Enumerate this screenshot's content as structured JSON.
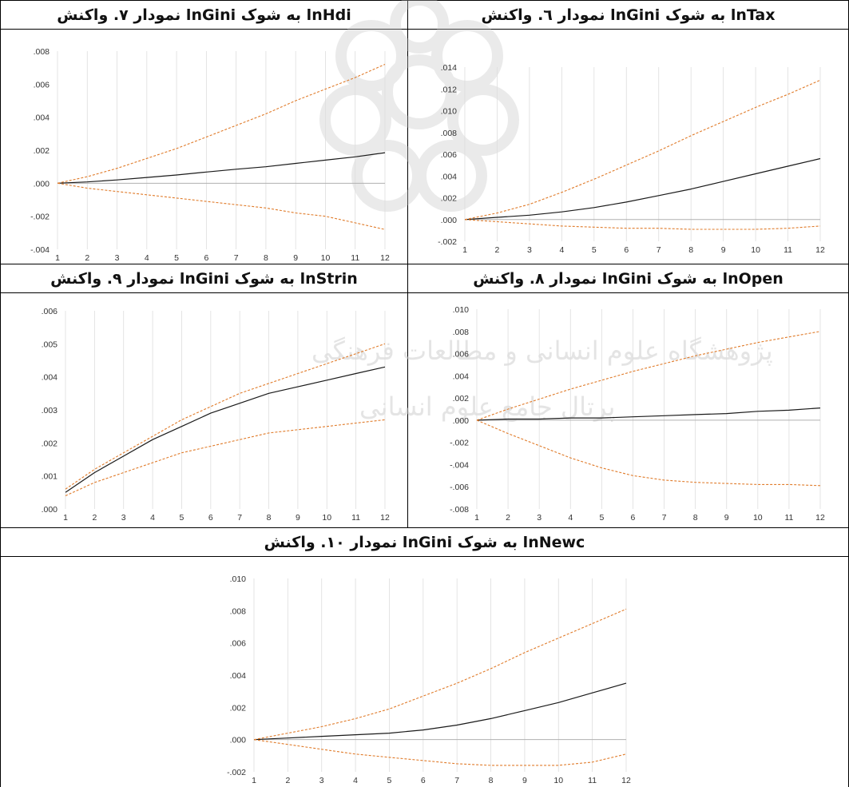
{
  "titles": {
    "t7": "نمودار ۷. واکنش lnGini به شوک lnHdi",
    "t6": "نمودار ٦. واکنش lnGini به شوک lnTax",
    "t9": "نمودار ۹. واکنش lnGini به شوک lnStrin",
    "t8": "نمودار ۸. واکنش lnGini به شوک lnOpen",
    "t10": "نمودار ۱۰. واکنش lnGini به شوک lnNewc"
  },
  "watermark": {
    "line1": "پژوهشگاه علوم انسانی و مطالعات فرهنگی",
    "line2": "پرتال جامع علوم انسانی"
  },
  "colors": {
    "response": "#1a1a1a",
    "band": "#e07b2a",
    "grid": "#dddddd",
    "zero": "#b0b0b0"
  },
  "chart_data": [
    {
      "id": "c7",
      "type": "line",
      "x": [
        1,
        2,
        3,
        4,
        5,
        6,
        7,
        8,
        9,
        10,
        11,
        12
      ],
      "ylim": [
        -0.004,
        0.008
      ],
      "yticks": [
        -0.004,
        -0.002,
        0.0,
        0.002,
        0.004,
        0.006,
        0.008
      ],
      "ytick_labels": [
        "-.004",
        "-.002",
        ".000",
        ".002",
        ".004",
        ".006",
        ".008"
      ],
      "series": [
        {
          "role": "response",
          "values": [
            0,
            8e-05,
            0.0002,
            0.00035,
            0.0005,
            0.00068,
            0.00085,
            0.001,
            0.0012,
            0.0014,
            0.0016,
            0.00185
          ]
        },
        {
          "role": "upper",
          "values": [
            0,
            0.0004,
            0.0009,
            0.0015,
            0.0021,
            0.0028,
            0.0035,
            0.0042,
            0.005,
            0.0057,
            0.0064,
            0.0072
          ]
        },
        {
          "role": "lower",
          "values": [
            0,
            -0.0003,
            -0.0005,
            -0.0007,
            -0.0009,
            -0.0011,
            -0.0013,
            -0.0015,
            -0.0018,
            -0.002,
            -0.0024,
            -0.0028
          ]
        }
      ]
    },
    {
      "id": "c6",
      "type": "line",
      "x": [
        1,
        2,
        3,
        4,
        5,
        6,
        7,
        8,
        9,
        10,
        11,
        12
      ],
      "ylim": [
        -0.002,
        0.014
      ],
      "yticks": [
        -0.002,
        0.0,
        0.002,
        0.004,
        0.006,
        0.008,
        0.01,
        0.012,
        0.014
      ],
      "ytick_labels": [
        "-.002",
        ".000",
        ".002",
        ".004",
        ".006",
        ".008",
        ".010",
        ".012",
        ".014"
      ],
      "series": [
        {
          "role": "response",
          "values": [
            0,
            0.0002,
            0.0004,
            0.0007,
            0.0011,
            0.0016,
            0.0022,
            0.0028,
            0.0035,
            0.0042,
            0.0049,
            0.0056
          ]
        },
        {
          "role": "upper",
          "values": [
            0,
            0.0006,
            0.0014,
            0.0025,
            0.0037,
            0.005,
            0.0063,
            0.0077,
            0.009,
            0.0103,
            0.0115,
            0.0128
          ]
        },
        {
          "role": "lower",
          "values": [
            0,
            -0.0002,
            -0.0004,
            -0.0006,
            -0.0007,
            -0.0008,
            -0.0008,
            -0.0009,
            -0.0009,
            -0.0009,
            -0.0008,
            -0.0006
          ]
        }
      ]
    },
    {
      "id": "c9",
      "type": "line",
      "x": [
        1,
        2,
        3,
        4,
        5,
        6,
        7,
        8,
        9,
        10,
        11,
        12
      ],
      "ylim": [
        0.0,
        0.006
      ],
      "yticks": [
        0.0,
        0.001,
        0.002,
        0.003,
        0.004,
        0.005,
        0.006
      ],
      "ytick_labels": [
        ".000",
        ".001",
        ".002",
        ".003",
        ".004",
        ".005",
        ".006"
      ],
      "series": [
        {
          "role": "response",
          "values": [
            0.0005,
            0.0011,
            0.0016,
            0.0021,
            0.0025,
            0.0029,
            0.0032,
            0.0035,
            0.0037,
            0.0039,
            0.0041,
            0.0043
          ]
        },
        {
          "role": "upper",
          "values": [
            0.0006,
            0.0012,
            0.0017,
            0.0022,
            0.0027,
            0.0031,
            0.0035,
            0.0038,
            0.0041,
            0.0044,
            0.0047,
            0.005
          ]
        },
        {
          "role": "lower",
          "values": [
            0.0004,
            0.0008,
            0.0011,
            0.0014,
            0.0017,
            0.0019,
            0.0021,
            0.0023,
            0.0024,
            0.0025,
            0.0026,
            0.0027
          ]
        }
      ]
    },
    {
      "id": "c8",
      "type": "line",
      "x": [
        1,
        2,
        3,
        4,
        5,
        6,
        7,
        8,
        9,
        10,
        11,
        12
      ],
      "ylim": [
        -0.008,
        0.01
      ],
      "yticks": [
        -0.008,
        -0.006,
        -0.004,
        -0.002,
        0.0,
        0.002,
        0.004,
        0.006,
        0.008,
        0.01
      ],
      "ytick_labels": [
        "-.008",
        "-.006",
        "-.004",
        "-.002",
        ".000",
        ".002",
        ".004",
        ".006",
        ".008",
        ".010"
      ],
      "series": [
        {
          "role": "response",
          "values": [
            0,
            0.0001,
            0.0001,
            0.0002,
            0.0002,
            0.0003,
            0.0004,
            0.0005,
            0.0006,
            0.0008,
            0.0009,
            0.0011
          ]
        },
        {
          "role": "upper",
          "values": [
            0,
            0.001,
            0.0019,
            0.0028,
            0.0036,
            0.0044,
            0.0051,
            0.0058,
            0.0064,
            0.007,
            0.0075,
            0.008
          ]
        },
        {
          "role": "lower",
          "values": [
            0,
            -0.0012,
            -0.0023,
            -0.0034,
            -0.0043,
            -0.005,
            -0.0054,
            -0.0056,
            -0.0057,
            -0.0058,
            -0.0058,
            -0.0059
          ]
        }
      ]
    },
    {
      "id": "c10",
      "type": "line",
      "x": [
        1,
        2,
        3,
        4,
        5,
        6,
        7,
        8,
        9,
        10,
        11,
        12
      ],
      "ylim": [
        -0.002,
        0.01
      ],
      "yticks": [
        -0.002,
        0.0,
        0.002,
        0.004,
        0.006,
        0.008,
        0.01
      ],
      "ytick_labels": [
        "-.002",
        ".000",
        ".002",
        ".004",
        ".006",
        ".008",
        ".010"
      ],
      "series": [
        {
          "role": "response",
          "values": [
            0,
            0.0001,
            0.0002,
            0.0003,
            0.0004,
            0.0006,
            0.0009,
            0.0013,
            0.0018,
            0.0023,
            0.0029,
            0.0035
          ]
        },
        {
          "role": "upper",
          "values": [
            0,
            0.0004,
            0.0008,
            0.0013,
            0.0019,
            0.0027,
            0.0035,
            0.0044,
            0.0054,
            0.0063,
            0.0072,
            0.0081
          ]
        },
        {
          "role": "lower",
          "values": [
            0,
            -0.0003,
            -0.0006,
            -0.0009,
            -0.0011,
            -0.0013,
            -0.0015,
            -0.0016,
            -0.0016,
            -0.0016,
            -0.0014,
            -0.0009
          ]
        }
      ]
    }
  ]
}
